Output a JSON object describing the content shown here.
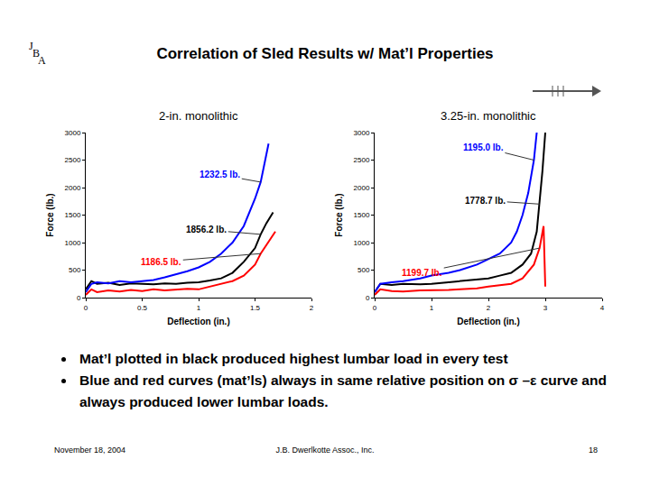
{
  "slide": {
    "logo": "JBA",
    "title": "Correlation of Sled Results w/ Mat’l Properties",
    "bullets": [
      "Mat’l plotted in black produced highest lumbar load in every test",
      "Blue and red curves (mat’ls) always in same relative position on σ –ε curve and always produced lower lumbar loads."
    ],
    "footer": {
      "date": "November 18, 2004",
      "company": "J.B. Dwerlkotte Assoc., Inc.",
      "page": "18"
    }
  },
  "chart_data": [
    {
      "type": "line",
      "title": "2-in. monolithic",
      "x_label": "Deflection (in.)",
      "y_label": "Force (lb.)",
      "xlim": [
        0,
        2
      ],
      "xticks": [
        0,
        0.5,
        1,
        1.5,
        2
      ],
      "ylim": [
        0,
        3000
      ],
      "yticks": [
        0,
        500,
        1000,
        1500,
        2000,
        2500,
        3000
      ],
      "grid": false,
      "series": [
        {
          "color": "#000000",
          "x": [
            0,
            0.05,
            0.1,
            0.2,
            0.3,
            0.4,
            0.5,
            0.6,
            0.7,
            0.8,
            0.9,
            1.0,
            1.1,
            1.2,
            1.3,
            1.4,
            1.5,
            1.55,
            1.6,
            1.66
          ],
          "values": [
            150,
            300,
            250,
            270,
            230,
            260,
            250,
            240,
            260,
            250,
            270,
            280,
            310,
            350,
            450,
            650,
            900,
            1150,
            1350,
            1550
          ]
        },
        {
          "color": "#0000ff",
          "x": [
            0,
            0.05,
            0.1,
            0.2,
            0.3,
            0.4,
            0.5,
            0.6,
            0.7,
            0.8,
            0.9,
            1.0,
            1.1,
            1.2,
            1.3,
            1.4,
            1.5,
            1.55,
            1.6,
            1.62
          ],
          "values": [
            100,
            250,
            280,
            260,
            300,
            280,
            300,
            320,
            370,
            420,
            480,
            550,
            650,
            800,
            1000,
            1300,
            1800,
            2100,
            2600,
            2800
          ]
        },
        {
          "color": "#ff0000",
          "x": [
            0,
            0.05,
            0.1,
            0.2,
            0.3,
            0.4,
            0.5,
            0.6,
            0.7,
            0.8,
            0.9,
            1.0,
            1.1,
            1.2,
            1.3,
            1.4,
            1.5,
            1.55,
            1.6,
            1.68
          ],
          "values": [
            50,
            150,
            100,
            130,
            110,
            140,
            120,
            150,
            130,
            140,
            160,
            150,
            200,
            250,
            300,
            400,
            600,
            800,
            950,
            1200
          ]
        }
      ],
      "annotations": [
        {
          "text": "1232.5 lb.",
          "color": "#0000ff"
        },
        {
          "text": "1856.2 lb.",
          "color": "#000000"
        },
        {
          "text": "1186.5 lb.",
          "color": "#ff0000"
        }
      ]
    },
    {
      "type": "line",
      "title": "3.25-in. monolithic",
      "x_label": "Deflection (in.)",
      "y_label": "Force (lb.)",
      "xlim": [
        0,
        4
      ],
      "xticks": [
        0,
        1,
        2,
        3,
        4
      ],
      "ylim": [
        0,
        3000
      ],
      "yticks": [
        0,
        500,
        1000,
        1500,
        2000,
        2500,
        3000
      ],
      "grid": false,
      "series": [
        {
          "color": "#000000",
          "x": [
            0,
            0.1,
            0.3,
            0.5,
            0.8,
            1.0,
            1.3,
            1.5,
            1.8,
            2.0,
            2.2,
            2.4,
            2.6,
            2.75,
            2.85,
            2.9,
            2.95,
            3.0
          ],
          "values": [
            100,
            250,
            230,
            250,
            240,
            250,
            280,
            300,
            320,
            350,
            400,
            450,
            600,
            800,
            1200,
            1700,
            2300,
            3000
          ]
        },
        {
          "color": "#0000ff",
          "x": [
            0,
            0.1,
            0.3,
            0.5,
            0.8,
            1.0,
            1.3,
            1.5,
            1.8,
            2.0,
            2.2,
            2.3,
            2.4,
            2.5,
            2.6,
            2.7,
            2.75,
            2.8,
            2.85
          ],
          "values": [
            100,
            250,
            280,
            300,
            350,
            400,
            450,
            500,
            600,
            700,
            800,
            900,
            1000,
            1200,
            1500,
            1900,
            2200,
            2500,
            3000
          ]
        },
        {
          "color": "#ff0000",
          "x": [
            0,
            0.1,
            0.3,
            0.5,
            0.8,
            1.0,
            1.3,
            1.5,
            1.8,
            2.0,
            2.2,
            2.4,
            2.6,
            2.8,
            2.9,
            2.95,
            2.97,
            3.0
          ],
          "values": [
            50,
            150,
            120,
            110,
            130,
            130,
            140,
            150,
            170,
            200,
            220,
            250,
            350,
            600,
            900,
            1200,
            1300,
            200
          ]
        }
      ],
      "annotations": [
        {
          "text": "1195.0 lb.",
          "color": "#0000ff"
        },
        {
          "text": "1778.7 lb.",
          "color": "#000000"
        },
        {
          "text": "1199.7 lb.",
          "color": "#ff0000"
        }
      ]
    }
  ]
}
